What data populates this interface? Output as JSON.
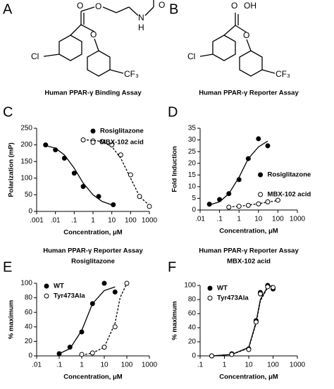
{
  "structures": [
    {
      "panel": "A",
      "atoms": [
        "O",
        "O",
        "N",
        "H",
        "O",
        "Cl",
        "O",
        "CF₃"
      ]
    },
    {
      "panel": "B",
      "atoms": [
        "O",
        "OH",
        "Cl",
        "O",
        "CF₃"
      ]
    }
  ],
  "chart_data": [
    {
      "type": "scatter",
      "panel": "C",
      "title": [
        "Human PPAR-γ Binding Assay"
      ],
      "xlabel": "Concentration, μM",
      "ylabel": "Polarization (mP)",
      "xscale": "log",
      "xlim": [
        0.001,
        1000
      ],
      "xticks": [
        {
          "value": 0.001,
          "label": ".001"
        },
        {
          "value": 0.01,
          "label": ".01"
        },
        {
          "value": 0.1,
          "label": ".1"
        },
        1,
        10,
        100,
        1000
      ],
      "ylim": [
        0,
        250
      ],
      "yticks": [
        0,
        50,
        100,
        150,
        200,
        250
      ],
      "legend": "upper right",
      "series": [
        {
          "name": "Rosiglitazone",
          "color": "#000000",
          "marker": "filled",
          "line": "solid",
          "x": [
            0.003,
            0.01,
            0.03,
            0.1,
            0.3,
            2,
            12
          ],
          "values": [
            200,
            185,
            160,
            115,
            75,
            45,
            20
          ],
          "fit": {
            "x": [
              0.003,
              0.01,
              0.03,
              0.1,
              0.3,
              1,
              3,
              12
            ],
            "values": [
              198,
              190,
              170,
              130,
              85,
              50,
              30,
              18
            ]
          }
        },
        {
          "name": "MBX-102 acid",
          "color": "#000000",
          "marker": "open",
          "line": "dashed",
          "x": [
            0.3,
            1,
            3,
            10,
            30,
            100,
            300,
            1000
          ],
          "values": [
            215,
            212,
            210,
            200,
            170,
            110,
            45,
            15
          ],
          "fit": {
            "x": [
              0.3,
              1,
              3,
              10,
              30,
              100,
              300,
              1000
            ],
            "values": [
              215,
              214,
              210,
              195,
              160,
              100,
              45,
              18
            ]
          }
        }
      ]
    },
    {
      "type": "scatter",
      "panel": "D",
      "title": [
        "Human PPAR-γ Reporter Assay"
      ],
      "xlabel": "Concentration, μM",
      "ylabel": "Fold Induction",
      "xscale": "log",
      "xlim": [
        0.01,
        1000
      ],
      "xticks": [
        {
          "value": 0.01,
          "label": ".01"
        },
        {
          "value": 0.1,
          "label": ".1"
        },
        1,
        10,
        100,
        1000
      ],
      "ylim": [
        0,
        35
      ],
      "yticks": [
        0,
        5,
        10,
        15,
        20,
        25,
        30,
        35
      ],
      "legend": "center right",
      "series": [
        {
          "name": "Rosiglitazone",
          "color": "#000000",
          "marker": "filled",
          "line": "solid",
          "x": [
            0.03,
            0.1,
            0.3,
            1,
            3,
            10,
            30
          ],
          "values": [
            2.5,
            4.5,
            7,
            13,
            22,
            30.5,
            27.5
          ],
          "fit": {
            "x": [
              0.03,
              0.1,
              0.3,
              1,
              3,
              10,
              30
            ],
            "values": [
              2.2,
              3.5,
              7,
              14,
              22,
              27,
              29.5
            ]
          }
        },
        {
          "name": "MBX-102 acid",
          "color": "#000000",
          "marker": "open",
          "line": "dashed",
          "x": [
            0.3,
            1,
            3,
            10,
            30,
            100
          ],
          "values": [
            1.2,
            1.6,
            2,
            2.6,
            3.5,
            4.2
          ],
          "fit": {
            "x": [
              0.3,
              1,
              3,
              10,
              30,
              100
            ],
            "values": [
              1.3,
              1.6,
              2.1,
              2.7,
              3.4,
              4
            ]
          }
        }
      ]
    },
    {
      "type": "scatter",
      "panel": "E",
      "title": [
        "Human PPAR-γ Reporter Assay",
        "Rosiglitazone"
      ],
      "xlabel": "Concentration, μM",
      "ylabel": "% maximum",
      "xscale": "log",
      "xlim": [
        0.01,
        1000
      ],
      "xticks": [
        {
          "value": 0.01,
          "label": ".01"
        },
        {
          "value": 0.1,
          "label": ".1"
        },
        1,
        10,
        100,
        1000
      ],
      "ylim": [
        0,
        100
      ],
      "yticks": [
        0,
        20,
        40,
        60,
        80,
        100
      ],
      "legend": "upper left",
      "series": [
        {
          "name": "WT",
          "color": "#000000",
          "marker": "filled",
          "line": "solid",
          "x": [
            0.1,
            0.3,
            1,
            3,
            10,
            30
          ],
          "values": [
            3,
            12,
            33,
            72,
            100,
            88
          ],
          "fit": {
            "x": [
              0.1,
              0.3,
              1,
              3,
              10,
              30
            ],
            "values": [
              3,
              10,
              35,
              72,
              90,
              95
            ]
          }
        },
        {
          "name": "Tyr473Ala",
          "color": "#000000",
          "marker": "open",
          "line": "dashed",
          "x": [
            1,
            3,
            10,
            30,
            100
          ],
          "values": [
            2,
            4,
            12,
            40,
            100
          ],
          "fit": {
            "x": [
              1,
              3,
              10,
              30,
              50,
              100
            ],
            "values": [
              1,
              4,
              12,
              45,
              80,
              100
            ]
          }
        }
      ]
    },
    {
      "type": "scatter",
      "panel": "F",
      "title": [
        "Human PPAR-γ Reporter Assay",
        "MBX-102 acid"
      ],
      "xlabel": "Concentration, μM",
      "ylabel": "% maximum",
      "xscale": "log",
      "xlim": [
        0.1,
        1000
      ],
      "xticks": [
        {
          "value": 0.1,
          "label": ".1"
        },
        1,
        10,
        100,
        1000
      ],
      "ylim": [
        0,
        100
      ],
      "yticks": [
        0,
        20,
        40,
        60,
        80,
        100
      ],
      "legend": "upper left",
      "series": [
        {
          "name": "WT",
          "color": "#000000",
          "marker": "filled",
          "line": "solid",
          "x": [
            0.3,
            2,
            10,
            20,
            30,
            60,
            100
          ],
          "values": [
            0,
            3,
            10,
            50,
            90,
            100,
            95
          ],
          "fit": {
            "x": [
              0.3,
              2,
              10,
              20,
              30,
              60,
              100
            ],
            "values": [
              0,
              2,
              12,
              48,
              80,
              98,
              100
            ]
          }
        },
        {
          "name": "Tyr473Ala",
          "color": "#000000",
          "marker": "open",
          "line": "dashed",
          "x": [
            0.3,
            2,
            10,
            20,
            30,
            60,
            100
          ],
          "values": [
            0,
            2,
            9,
            48,
            88,
            98,
            97
          ],
          "fit": {
            "x": [
              0.3,
              2,
              10,
              20,
              30,
              60,
              100
            ],
            "values": [
              0,
              2,
              11,
              46,
              78,
              97,
              100
            ]
          }
        }
      ]
    }
  ]
}
